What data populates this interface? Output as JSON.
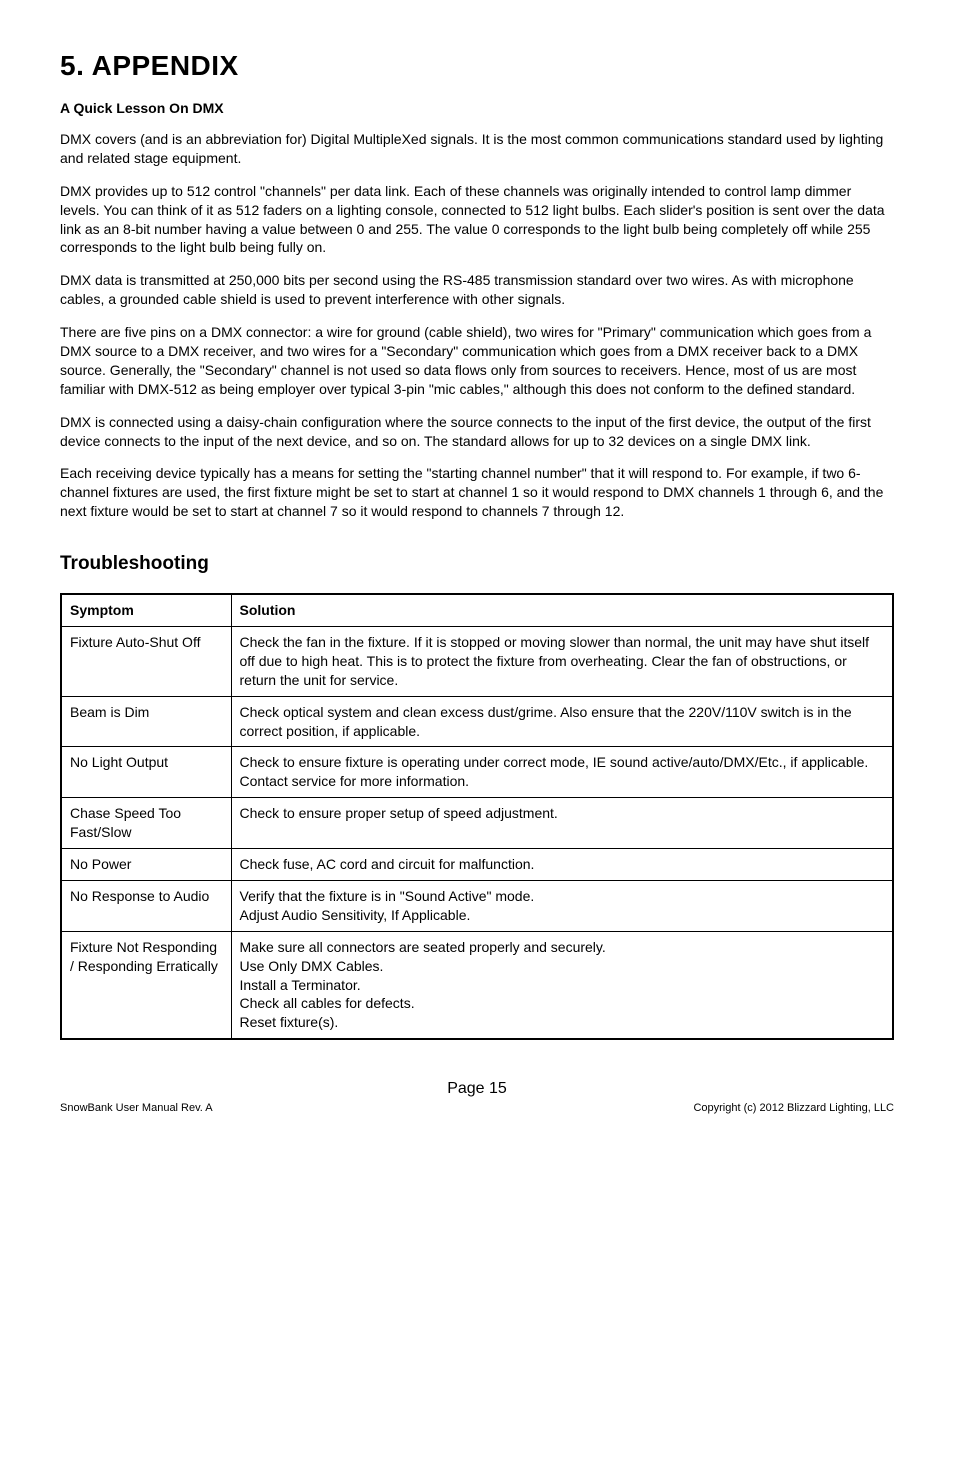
{
  "title": "5. APPENDIX",
  "subtitle": "A Quick Lesson On DMX",
  "paragraphs": [
    "DMX covers (and is an abbreviation for) Digital MultipleXed signals. It is the most common communications standard used by lighting and related stage equipment.",
    "DMX provides up to 512 control \"channels\" per data link. Each of these channels was originally intended to control lamp dimmer levels. You can think of it as 512 faders on a lighting console, connected to 512 light bulbs. Each slider's position is sent over the data link as an 8-bit number having a value between 0 and 255. The value 0 corresponds to the light bulb being completely off while 255 corresponds to the light bulb being fully on.",
    "DMX data is transmitted at 250,000 bits per second using the RS-485 transmission standard over two wires. As with microphone cables, a grounded cable shield is used to prevent interference with other signals.",
    "There are five pins on a DMX connector: a wire for ground (cable shield), two wires for \"Primary\" communication which goes from a DMX source to a DMX receiver, and two wires for a \"Secondary\" communication which goes from a DMX receiver back to a DMX source. Generally, the \"Secondary\" channel is not used so data flows only from sources to receivers.  Hence, most of us are most familiar with DMX-512 as being employer over typical 3-pin \"mic cables,\" although this does not conform to the defined standard.",
    "DMX is connected using a daisy-chain configuration where the source connects to the input of the first device, the output of the first device connects to the input of the next device, and so on. The standard allows for up to 32 devices on a single DMX link.",
    "Each receiving device typically has a means for setting the \"starting channel number\" that it will respond to. For example, if two 6-channel fixtures are used, the first fixture might be set to start at channel 1 so it would respond to DMX channels 1 through 6, and the next fixture would be set to start at channel 7 so it would respond to channels 7 through 12."
  ],
  "troubleshooting_heading": "Troubleshooting",
  "table": {
    "headers": [
      "Symptom",
      "Solution"
    ],
    "rows": [
      [
        "Fixture Auto-Shut Off",
        "Check the fan in the fixture.  If it is stopped or moving slower than normal, the unit may have shut itself off due to high heat.  This is to protect the fixture from overheating.  Clear the fan of obstructions, or return the unit for service."
      ],
      [
        "Beam is Dim",
        "Check optical system and clean excess dust/grime.  Also ensure that the 220V/110V switch is in the correct position, if applicable."
      ],
      [
        "No Light Output",
        "Check to ensure fixture is operating under correct mode, IE sound active/auto/DMX/Etc., if applicable.  Contact service for more information."
      ],
      [
        "Chase Speed Too Fast/Slow",
        "Check to ensure proper setup of speed adjustment."
      ],
      [
        "No Power",
        "Check fuse, AC cord and circuit for malfunction."
      ],
      [
        "No Response to Audio",
        "Verify that the fixture is in \"Sound Active\" mode.\nAdjust Audio Sensitivity, If Applicable."
      ],
      [
        "Fixture Not Responding / Responding Erratically",
        "Make sure all connectors are seated properly and securely.\nUse Only DMX Cables.\nInstall a Terminator.\nCheck all cables for defects.\nReset fixture(s)."
      ]
    ]
  },
  "footer": {
    "page_label": "Page 15",
    "left": "SnowBank User Manual Rev. A",
    "right": "Copyright (c) 2012 Blizzard Lighting, LLC"
  }
}
